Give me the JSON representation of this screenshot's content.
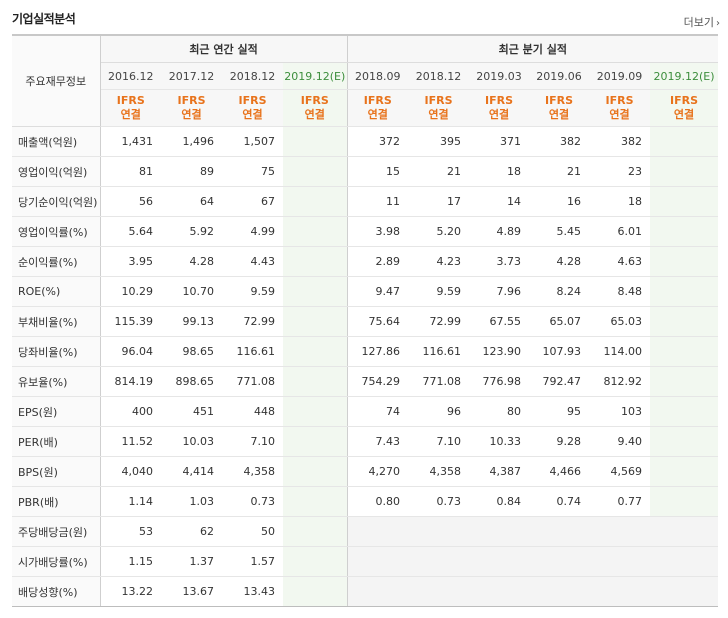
{
  "title": "기업실적분석",
  "more_label": "더보기",
  "header": {
    "row_label": "주요재무정보",
    "annual_group": "최근 연간 실적",
    "quarter_group": "최근 분기 실적",
    "annual_cols": [
      "2016.12",
      "2017.12",
      "2018.12",
      "2019.12(E)"
    ],
    "quarter_cols": [
      "2018.09",
      "2018.12",
      "2019.03",
      "2019.06",
      "2019.09",
      "2019.12(E)"
    ],
    "ifrs_top": "IFRS",
    "ifrs_bottom": "연결"
  },
  "rows": [
    {
      "label": "매출액(억원)",
      "annual": [
        "1,431",
        "1,496",
        "1,507",
        ""
      ],
      "quarter": [
        "372",
        "395",
        "371",
        "382",
        "382",
        ""
      ]
    },
    {
      "label": "영업이익(억원)",
      "annual": [
        "81",
        "89",
        "75",
        ""
      ],
      "quarter": [
        "15",
        "21",
        "18",
        "21",
        "23",
        ""
      ]
    },
    {
      "label": "당기순이익(억원)",
      "annual": [
        "56",
        "64",
        "67",
        ""
      ],
      "quarter": [
        "11",
        "17",
        "14",
        "16",
        "18",
        ""
      ]
    },
    {
      "label": "영업이익률(%)",
      "annual": [
        "5.64",
        "5.92",
        "4.99",
        ""
      ],
      "quarter": [
        "3.98",
        "5.20",
        "4.89",
        "5.45",
        "6.01",
        ""
      ]
    },
    {
      "label": "순이익률(%)",
      "annual": [
        "3.95",
        "4.28",
        "4.43",
        ""
      ],
      "quarter": [
        "2.89",
        "4.23",
        "3.73",
        "4.28",
        "4.63",
        ""
      ]
    },
    {
      "label": "ROE(%)",
      "annual": [
        "10.29",
        "10.70",
        "9.59",
        ""
      ],
      "quarter": [
        "9.47",
        "9.59",
        "7.96",
        "8.24",
        "8.48",
        ""
      ]
    },
    {
      "label": "부채비율(%)",
      "annual": [
        "115.39",
        "99.13",
        "72.99",
        ""
      ],
      "quarter": [
        "75.64",
        "72.99",
        "67.55",
        "65.07",
        "65.03",
        ""
      ]
    },
    {
      "label": "당좌비율(%)",
      "annual": [
        "96.04",
        "98.65",
        "116.61",
        ""
      ],
      "quarter": [
        "127.86",
        "116.61",
        "123.90",
        "107.93",
        "114.00",
        ""
      ]
    },
    {
      "label": "유보율(%)",
      "annual": [
        "814.19",
        "898.65",
        "771.08",
        ""
      ],
      "quarter": [
        "754.29",
        "771.08",
        "776.98",
        "792.47",
        "812.92",
        ""
      ]
    },
    {
      "label": "EPS(원)",
      "annual": [
        "400",
        "451",
        "448",
        ""
      ],
      "quarter": [
        "74",
        "96",
        "80",
        "95",
        "103",
        ""
      ]
    },
    {
      "label": "PER(배)",
      "annual": [
        "11.52",
        "10.03",
        "7.10",
        ""
      ],
      "quarter": [
        "7.43",
        "7.10",
        "10.33",
        "9.28",
        "9.40",
        ""
      ]
    },
    {
      "label": "BPS(원)",
      "annual": [
        "4,040",
        "4,414",
        "4,358",
        ""
      ],
      "quarter": [
        "4,270",
        "4,358",
        "4,387",
        "4,466",
        "4,569",
        ""
      ]
    },
    {
      "label": "PBR(배)",
      "annual": [
        "1.14",
        "1.03",
        "0.73",
        ""
      ],
      "quarter": [
        "0.80",
        "0.73",
        "0.84",
        "0.74",
        "0.77",
        ""
      ]
    },
    {
      "label": "주당배당금(원)",
      "annual": [
        "53",
        "62",
        "50",
        ""
      ],
      "quarter": [
        "",
        "",
        "",
        "",
        "",
        ""
      ]
    },
    {
      "label": "시가배당률(%)",
      "annual": [
        "1.15",
        "1.37",
        "1.57",
        ""
      ],
      "quarter": [
        "",
        "",
        "",
        "",
        "",
        ""
      ]
    },
    {
      "label": "배당성향(%)",
      "annual": [
        "13.22",
        "13.67",
        "13.43",
        ""
      ],
      "quarter": [
        "",
        "",
        "",
        "",
        "",
        ""
      ]
    }
  ]
}
